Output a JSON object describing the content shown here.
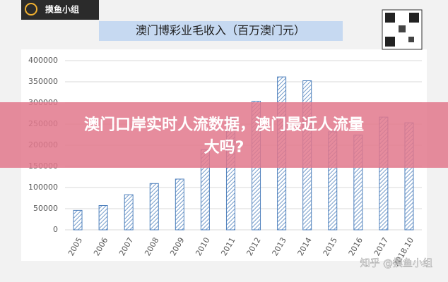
{
  "logo": {
    "text": "摸鱼小组"
  },
  "headline": {
    "lines": [
      "澳门口岸实时人流数据，澳门最近人流量",
      "大吗?"
    ]
  },
  "watermark": "知乎 @摸鱼小组",
  "chart_data": {
    "type": "bar",
    "title": "澳门博彩业毛收入（百万澳门元）",
    "categories": [
      "2005",
      "2006",
      "2007",
      "2008",
      "2009",
      "2010",
      "2011",
      "2012",
      "2013",
      "2014",
      "2015",
      "2016",
      "2017",
      "2018.10"
    ],
    "values": [
      46000,
      57500,
      83000,
      109500,
      120000,
      189500,
      268000,
      304000,
      361500,
      352500,
      231800,
      224000,
      266500,
      253000
    ],
    "color": "#4f81bd",
    "ylim": [
      0,
      400000
    ],
    "yticks": [
      0,
      50000,
      100000,
      150000,
      200000,
      250000,
      300000,
      350000,
      400000
    ],
    "grid": true
  }
}
